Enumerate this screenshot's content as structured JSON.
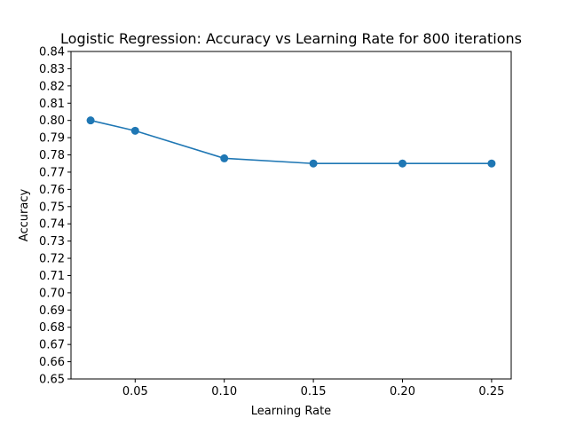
{
  "chart_data": {
    "type": "line",
    "title": "Logistic Regression: Accuracy vs Learning Rate for 800 iterations",
    "xlabel": "Learning Rate",
    "ylabel": "Accuracy",
    "xlim": [
      0.014,
      0.261
    ],
    "ylim": [
      0.65,
      0.84
    ],
    "x_ticks": [
      "0.05",
      "0.10",
      "0.15",
      "0.20",
      "0.25"
    ],
    "y_ticks": [
      "0.65",
      "0.66",
      "0.67",
      "0.68",
      "0.69",
      "0.70",
      "0.71",
      "0.72",
      "0.73",
      "0.74",
      "0.75",
      "0.76",
      "0.77",
      "0.78",
      "0.79",
      "0.80",
      "0.81",
      "0.82",
      "0.83",
      "0.84"
    ],
    "grid": false,
    "series": [
      {
        "color": "#1f77b4",
        "marker": "circle",
        "x": [
          0.025,
          0.05,
          0.1,
          0.15,
          0.2,
          0.25
        ],
        "y": [
          0.8,
          0.794,
          0.778,
          0.775,
          0.775,
          0.775
        ]
      }
    ]
  }
}
